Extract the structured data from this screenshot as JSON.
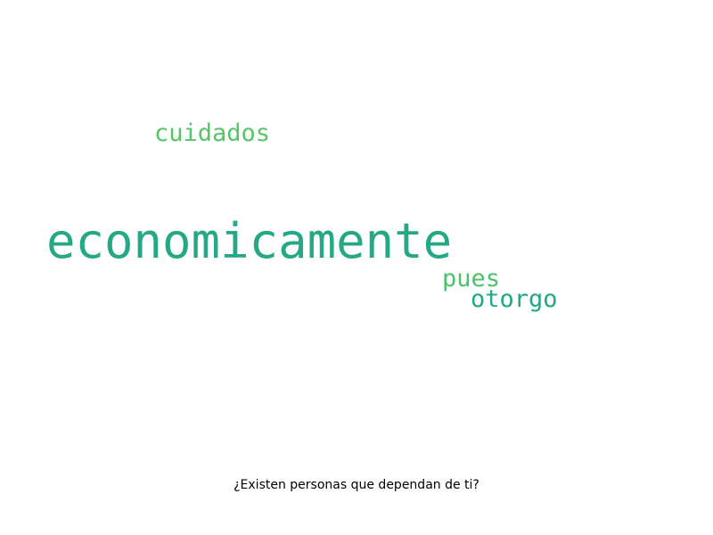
{
  "words": [
    {
      "text": "economicamente",
      "color": "#24a886"
    },
    {
      "text": "cuidados",
      "color": "#56c566"
    },
    {
      "text": "pues",
      "color": "#4cc26c"
    },
    {
      "text": "otorgo",
      "color": "#22a884"
    }
  ],
  "caption": "¿Existen personas que dependan de ti?"
}
